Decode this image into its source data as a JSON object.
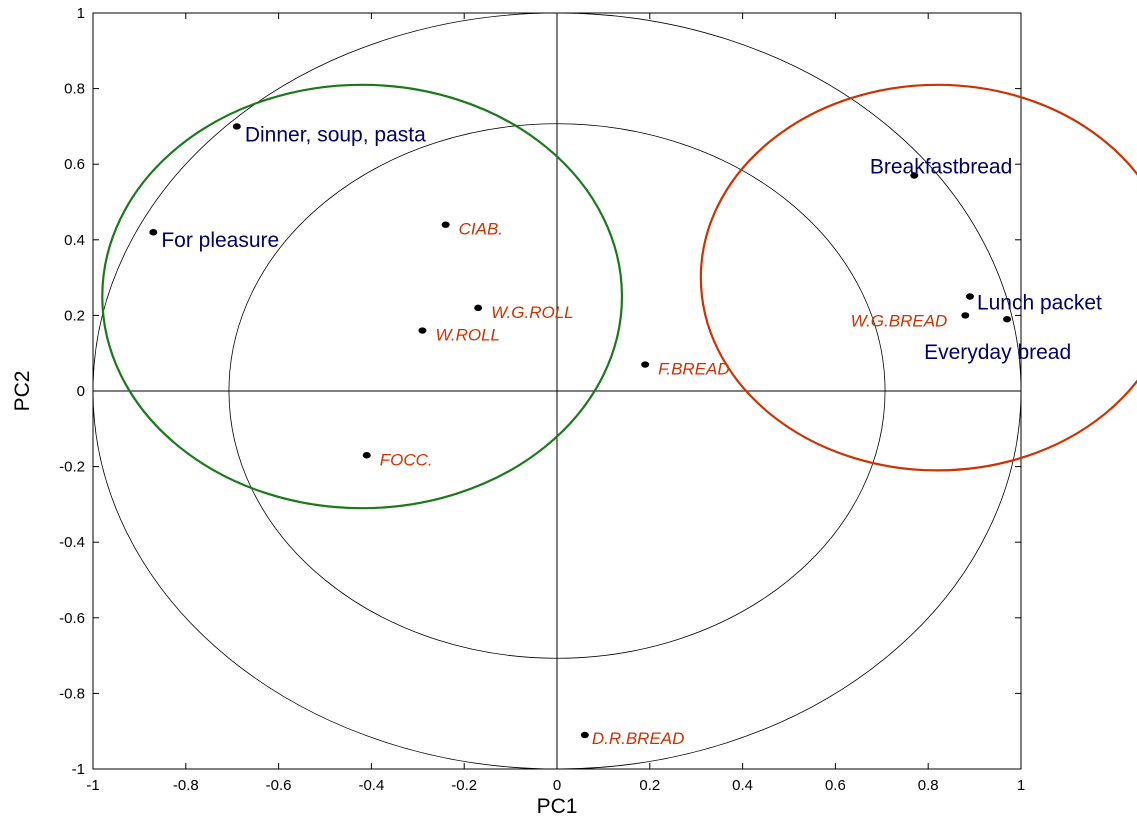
{
  "chart_data": {
    "type": "scatter",
    "xlabel": "PC1",
    "ylabel": "PC2",
    "xlim": [
      -1,
      1
    ],
    "ylim": [
      -1,
      1
    ],
    "xticks": [
      -1,
      -0.8,
      -0.6,
      -0.4,
      -0.2,
      0,
      0.2,
      0.4,
      0.6,
      0.8,
      1
    ],
    "yticks": [
      -1,
      -0.8,
      -0.6,
      -0.4,
      -0.2,
      0,
      0.2,
      0.4,
      0.6,
      0.8,
      1
    ],
    "tick_labels_x": [
      "-1",
      "-0.8",
      "-0.6",
      "-0.4",
      "-0.2",
      "0",
      "0.2",
      "0.4",
      "0.6",
      "0.8",
      "1"
    ],
    "tick_labels_y": [
      "-1",
      "-0.8",
      "-0.6",
      "-0.4",
      "-0.2",
      "0",
      "0.2",
      "0.4",
      "0.6",
      "0.8",
      "1"
    ],
    "grid": false,
    "reference_lines": {
      "x": 0,
      "y": 0
    },
    "correlation_circles": [
      {
        "radius": 1.0,
        "color": "#000000"
      },
      {
        "radius": 0.707,
        "color": "#000000"
      }
    ],
    "highlight_circles": [
      {
        "cx": -0.42,
        "cy": 0.25,
        "r": 0.56,
        "color": "#1a7a1a"
      },
      {
        "cx": 0.82,
        "cy": 0.3,
        "r": 0.51,
        "color": "#cc3300"
      }
    ],
    "series": [
      {
        "color": "#000066",
        "points": [
          {
            "label": "Dinner, soup, pasta",
            "x": -0.69,
            "y": 0.7
          },
          {
            "label": "For pleasure",
            "x": -0.87,
            "y": 0.42
          },
          {
            "label": "Breakfastbread",
            "x": 0.77,
            "y": 0.57
          },
          {
            "label": "Lunch packet",
            "x": 0.89,
            "y": 0.25
          },
          {
            "label": "Everyday bread",
            "x": 0.97,
            "y": 0.19
          }
        ]
      },
      {
        "color": "#cc3300",
        "points": [
          {
            "label": "CIAB.",
            "x": -0.24,
            "y": 0.44
          },
          {
            "label": "W.G.ROLL",
            "x": -0.17,
            "y": 0.22
          },
          {
            "label": "W.ROLL",
            "x": -0.29,
            "y": 0.16
          },
          {
            "label": "F.BREAD",
            "x": 0.19,
            "y": 0.07
          },
          {
            "label": "FOCC.",
            "x": -0.41,
            "y": -0.17
          },
          {
            "label": "D.R.BREAD",
            "x": 0.06,
            "y": -0.91
          },
          {
            "label": "W.G.BREAD",
            "x": 0.88,
            "y": 0.2
          }
        ]
      }
    ]
  }
}
